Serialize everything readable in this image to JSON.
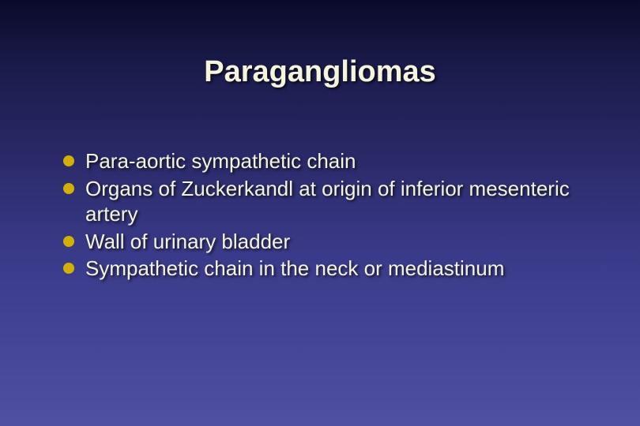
{
  "slide": {
    "title": "Paragangliomas",
    "background_gradient_top": "#0a0a2a",
    "background_gradient_bottom": "#5050a0",
    "title_color": "#f5f5dc",
    "title_fontsize": 38,
    "text_color": "#f5f5dc",
    "text_fontsize": 26,
    "bullet_color": "#d4b000",
    "bullets": [
      {
        "text": "Para-aortic sympathetic chain"
      },
      {
        "text": "Organs of Zuckerkandl at origin of inferior mesenteric artery"
      },
      {
        "text": "Wall of urinary bladder"
      },
      {
        "text": "Sympathetic chain in the neck or mediastinum"
      }
    ]
  }
}
